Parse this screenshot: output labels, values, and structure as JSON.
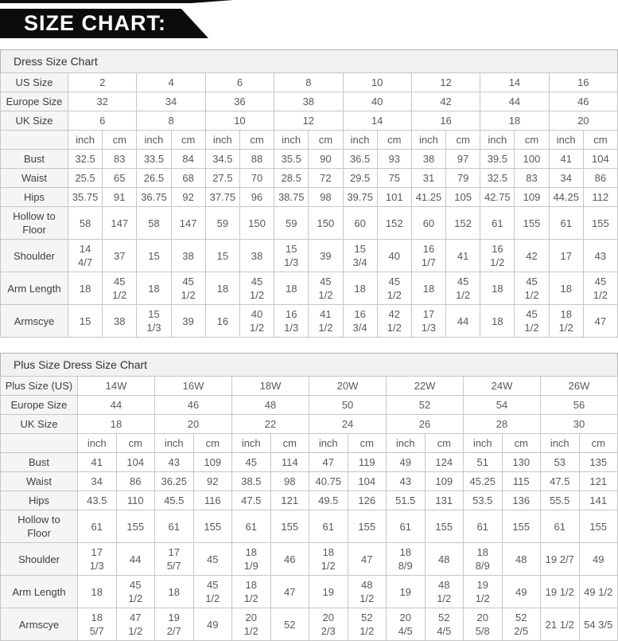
{
  "banner": {
    "title": "SIZE CHART:"
  },
  "colors": {
    "banner_bg": "#0c0c0c",
    "banner_text": "#ffffff",
    "section_title_bg": "#f1f1f1",
    "label_cell_bg": "#f5f5f5",
    "cell_border": "#c6c6c6",
    "cell_text": "#56595d"
  },
  "tables": [
    {
      "title": "Dress Size Chart",
      "label_col_width": 85,
      "size_rows": [
        {
          "label": "US Size",
          "values": [
            "2",
            "4",
            "6",
            "8",
            "10",
            "12",
            "14",
            "16"
          ]
        },
        {
          "label": "Europe Size",
          "values": [
            "32",
            "34",
            "36",
            "38",
            "40",
            "42",
            "44",
            "46"
          ]
        },
        {
          "label": "UK Size",
          "values": [
            "6",
            "8",
            "10",
            "12",
            "14",
            "16",
            "18",
            "20"
          ]
        }
      ],
      "units_row": [
        "inch",
        "cm"
      ],
      "measure_rows": [
        {
          "label": "Bust",
          "values": [
            "32.5",
            "83",
            "33.5",
            "84",
            "34.5",
            "88",
            "35.5",
            "90",
            "36.5",
            "93",
            "38",
            "97",
            "39.5",
            "100",
            "41",
            "104"
          ]
        },
        {
          "label": "Waist",
          "values": [
            "25.5",
            "65",
            "26.5",
            "68",
            "27.5",
            "70",
            "28.5",
            "72",
            "29.5",
            "75",
            "31",
            "79",
            "32.5",
            "83",
            "34",
            "86"
          ]
        },
        {
          "label": "Hips",
          "values": [
            "35.75",
            "91",
            "36.75",
            "92",
            "37.75",
            "96",
            "38.75",
            "98",
            "39.75",
            "101",
            "41.25",
            "105",
            "42.75",
            "109",
            "44.25",
            "112"
          ]
        },
        {
          "label": "Hollow to\nFloor",
          "values": [
            "58",
            "147",
            "58",
            "147",
            "59",
            "150",
            "59",
            "150",
            "60",
            "152",
            "60",
            "152",
            "61",
            "155",
            "61",
            "155"
          ]
        },
        {
          "label": "Shoulder",
          "values": [
            "14\n4/7",
            "37",
            "15",
            "38",
            "15",
            "38",
            "15\n1/3",
            "39",
            "15\n3/4",
            "40",
            "16\n1/7",
            "41",
            "16\n1/2",
            "42",
            "17",
            "43"
          ]
        },
        {
          "label": "Arm Length",
          "values": [
            "18",
            "45\n1/2",
            "18",
            "45\n1/2",
            "18",
            "45\n1/2",
            "18",
            "45\n1/2",
            "18",
            "45\n1/2",
            "18",
            "45\n1/2",
            "18",
            "45\n1/2",
            "18",
            "45\n1/2"
          ]
        },
        {
          "label": "Armscye",
          "values": [
            "15",
            "38",
            "15\n1/3",
            "39",
            "16",
            "40\n1/2",
            "16\n1/3",
            "41\n1/2",
            "16\n3/4",
            "42\n1/2",
            "17\n1/3",
            "44",
            "18",
            "45\n1/2",
            "18\n1/2",
            "47"
          ]
        }
      ]
    },
    {
      "title": "Plus Size Dress Size Chart",
      "label_col_width": 97,
      "size_rows": [
        {
          "label": "Plus Size (US)",
          "values": [
            "14W",
            "16W",
            "18W",
            "20W",
            "22W",
            "24W",
            "26W"
          ]
        },
        {
          "label": "Europe Size",
          "values": [
            "44",
            "46",
            "48",
            "50",
            "52",
            "54",
            "56"
          ]
        },
        {
          "label": "UK Size",
          "values": [
            "18",
            "20",
            "22",
            "24",
            "26",
            "28",
            "30"
          ]
        }
      ],
      "units_row": [
        "inch",
        "cm"
      ],
      "measure_rows": [
        {
          "label": "Bust",
          "values": [
            "41",
            "104",
            "43",
            "109",
            "45",
            "114",
            "47",
            "119",
            "49",
            "124",
            "51",
            "130",
            "53",
            "135"
          ]
        },
        {
          "label": "Waist",
          "values": [
            "34",
            "86",
            "36.25",
            "92",
            "38.5",
            "98",
            "40.75",
            "104",
            "43",
            "109",
            "45.25",
            "115",
            "47.5",
            "121"
          ]
        },
        {
          "label": "Hips",
          "values": [
            "43.5",
            "110",
            "45.5",
            "116",
            "47.5",
            "121",
            "49.5",
            "126",
            "51.5",
            "131",
            "53.5",
            "136",
            "55.5",
            "141"
          ]
        },
        {
          "label": "Hollow to\nFloor",
          "values": [
            "61",
            "155",
            "61",
            "155",
            "61",
            "155",
            "61",
            "155",
            "61",
            "155",
            "61",
            "155",
            "61",
            "155"
          ]
        },
        {
          "label": "Shoulder",
          "values": [
            "17\n1/3",
            "44",
            "17\n5/7",
            "45",
            "18\n1/9",
            "46",
            "18\n1/2",
            "47",
            "18\n8/9",
            "48",
            "18\n8/9",
            "48",
            "19 2/7",
            "49"
          ]
        },
        {
          "label": "Arm Length",
          "values": [
            "18",
            "45\n1/2",
            "18",
            "45\n1/2",
            "18\n1/2",
            "47",
            "19",
            "48\n1/2",
            "19",
            "48\n1/2",
            "19\n1/2",
            "49",
            "19 1/2",
            "49 1/2"
          ]
        },
        {
          "label": "Armscye",
          "values": [
            "18\n5/7",
            "47\n1/2",
            "19\n2/7",
            "49",
            "20\n1/2",
            "52",
            "20\n2/3",
            "52\n1/2",
            "20\n4/5",
            "52\n4/5",
            "20\n5/8",
            "52\n2/5",
            "21 1/2",
            "54 3/5"
          ]
        }
      ]
    }
  ]
}
